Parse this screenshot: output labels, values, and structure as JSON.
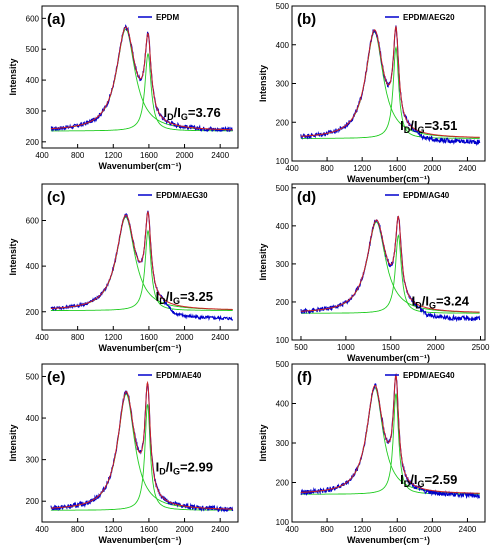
{
  "chart_data": [
    {
      "type": "line",
      "panel_label": "(a)",
      "legend": "EPDM",
      "ratio_label": {
        "main": "I",
        "sub1": "D",
        "slash": "/I",
        "sub2": "G",
        "value": "=3.76"
      },
      "xlabel": "Wavenumber(cm⁻¹)",
      "ylabel": "Intensity",
      "xlim": [
        400,
        2600
      ],
      "ylim": [
        180,
        640
      ],
      "xticks": [
        400,
        800,
        1200,
        1600,
        2000,
        2400
      ],
      "yticks": [
        200,
        300,
        400,
        500,
        600
      ],
      "baseline": 235,
      "d_peak": {
        "center": 1340,
        "width": 125,
        "height": 330
      },
      "g_peak": {
        "center": 1590,
        "width": 42,
        "height": 250
      },
      "noise": 7,
      "tail_offset": 0,
      "colors": {
        "raw": "#0000cc",
        "fit": "#cc2222",
        "component": "#22cc22"
      }
    },
    {
      "type": "line",
      "panel_label": "(b)",
      "legend": "EPDM/AEG20",
      "ratio_label": {
        "main": "I",
        "sub1": "D",
        "slash": "/I",
        "sub2": "G",
        "value": "=3.51"
      },
      "xlabel": "Wavenumber(cm⁻¹)",
      "ylabel": "Intensity",
      "xlim": [
        400,
        2600
      ],
      "ylim": [
        100,
        500
      ],
      "xticks": [
        400,
        800,
        1200,
        1600,
        2000,
        2400
      ],
      "yticks": [
        100,
        200,
        300,
        400,
        500
      ],
      "baseline": 158,
      "d_peak": {
        "center": 1340,
        "width": 120,
        "height": 275
      },
      "g_peak": {
        "center": 1585,
        "width": 38,
        "height": 235
      },
      "noise": 6,
      "tail_offset": -12,
      "colors": {
        "raw": "#0000cc",
        "fit": "#cc2222",
        "component": "#22cc22"
      }
    },
    {
      "type": "line",
      "panel_label": "(c)",
      "legend": "EPDM/AEG30",
      "ratio_label": {
        "main": "I",
        "sub1": "D",
        "slash": "/I",
        "sub2": "G",
        "value": "=3.25"
      },
      "xlabel": "Wavenumber(cm⁻¹)",
      "ylabel": "Intensity",
      "xlim": [
        400,
        2600
      ],
      "ylim": [
        120,
        760
      ],
      "xticks": [
        400,
        800,
        1200,
        1600,
        2000,
        2400
      ],
      "yticks": [
        200,
        400,
        600
      ],
      "baseline": 205,
      "d_peak": {
        "center": 1340,
        "width": 125,
        "height": 410
      },
      "g_peak": {
        "center": 1590,
        "width": 40,
        "height": 350
      },
      "noise": 7,
      "tail_offset": -40,
      "colors": {
        "raw": "#0000cc",
        "fit": "#cc2222",
        "component": "#22cc22"
      }
    },
    {
      "type": "line",
      "panel_label": "(d)",
      "legend": "EPDM/AG40",
      "ratio_label": {
        "main": "I",
        "sub1": "D",
        "slash": "/I",
        "sub2": "G",
        "value": "=3.24"
      },
      "xlabel": "Wavenumber(cm⁻¹)",
      "ylabel": "Intensity",
      "xlim": [
        400,
        2550
      ],
      "ylim": [
        100,
        510
      ],
      "xticks": [
        500,
        1000,
        1500,
        2000,
        2500
      ],
      "yticks": [
        100,
        200,
        300,
        400,
        500
      ],
      "baseline": 170,
      "d_peak": {
        "center": 1340,
        "width": 125,
        "height": 240
      },
      "g_peak": {
        "center": 1585,
        "width": 40,
        "height": 205
      },
      "noise": 6,
      "tail_offset": -18,
      "colors": {
        "raw": "#0000cc",
        "fit": "#cc2222",
        "component": "#22cc22"
      }
    },
    {
      "type": "line",
      "panel_label": "(e)",
      "legend": "EPDM/AE40",
      "ratio_label": {
        "main": "I",
        "sub1": "D",
        "slash": "/I",
        "sub2": "G",
        "value": "=2.99"
      },
      "xlabel": "Wavenumber(cm⁻¹)",
      "ylabel": "Intensity",
      "xlim": [
        400,
        2600
      ],
      "ylim": [
        150,
        530
      ],
      "xticks": [
        400,
        800,
        1200,
        1600,
        2000,
        2400
      ],
      "yticks": [
        200,
        300,
        400,
        500
      ],
      "baseline": 178,
      "d_peak": {
        "center": 1345,
        "width": 115,
        "height": 280
      },
      "g_peak": {
        "center": 1585,
        "width": 36,
        "height": 255
      },
      "noise": 6,
      "tail_offset": 0,
      "colors": {
        "raw": "#0000cc",
        "fit": "#cc2222",
        "component": "#22cc22"
      }
    },
    {
      "type": "line",
      "panel_label": "(f)",
      "legend": "EPDM/AEG40",
      "ratio_label": {
        "main": "I",
        "sub1": "D",
        "slash": "/I",
        "sub2": "G",
        "value": "=2.59"
      },
      "xlabel": "Wavenumber(cm⁻¹)",
      "ylabel": "Intensity",
      "xlim": [
        400,
        2600
      ],
      "ylim": [
        100,
        500
      ],
      "xticks": [
        400,
        800,
        1200,
        1600,
        2000,
        2400
      ],
      "yticks": [
        100,
        200,
        300,
        400,
        500
      ],
      "baseline": 170,
      "d_peak": {
        "center": 1345,
        "width": 112,
        "height": 270
      },
      "g_peak": {
        "center": 1585,
        "width": 36,
        "height": 255
      },
      "noise": 6,
      "tail_offset": -5,
      "colors": {
        "raw": "#0000cc",
        "fit": "#cc2222",
        "component": "#22cc22"
      }
    }
  ]
}
